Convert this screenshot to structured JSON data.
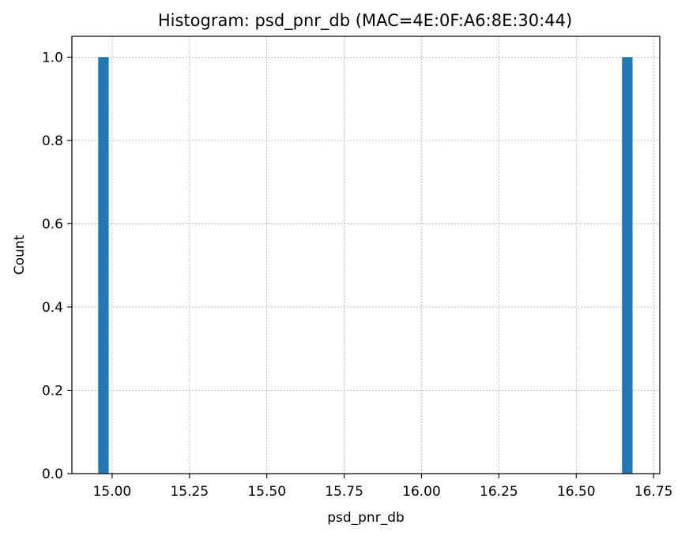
{
  "chart_data": {
    "type": "bar",
    "title": "Histogram: psd_pnr_db (MAC=4E:0F:A6:8E:30:44)",
    "xlabel": "psd_pnr_db",
    "ylabel": "Count",
    "bins": [
      {
        "x0": 14.955,
        "x1": 14.989,
        "count": 1.0
      },
      {
        "x0": 16.648,
        "x1": 16.682,
        "count": 1.0
      }
    ],
    "xlim": [
      14.87,
      16.77
    ],
    "ylim": [
      0,
      1.05
    ],
    "x_ticks": [
      {
        "value": 15.0,
        "label": "15.00"
      },
      {
        "value": 15.25,
        "label": "15.25"
      },
      {
        "value": 15.5,
        "label": "15.50"
      },
      {
        "value": 15.75,
        "label": "15.75"
      },
      {
        "value": 16.0,
        "label": "16.00"
      },
      {
        "value": 16.25,
        "label": "16.25"
      },
      {
        "value": 16.5,
        "label": "16.50"
      },
      {
        "value": 16.75,
        "label": "16.75"
      }
    ],
    "y_ticks": [
      {
        "value": 0.0,
        "label": "0.0"
      },
      {
        "value": 0.2,
        "label": "0.2"
      },
      {
        "value": 0.4,
        "label": "0.4"
      },
      {
        "value": 0.6,
        "label": "0.6"
      },
      {
        "value": 0.8,
        "label": "0.8"
      },
      {
        "value": 1.0,
        "label": "1.0"
      }
    ],
    "grid": true,
    "bar_color": "#1f77b4"
  }
}
